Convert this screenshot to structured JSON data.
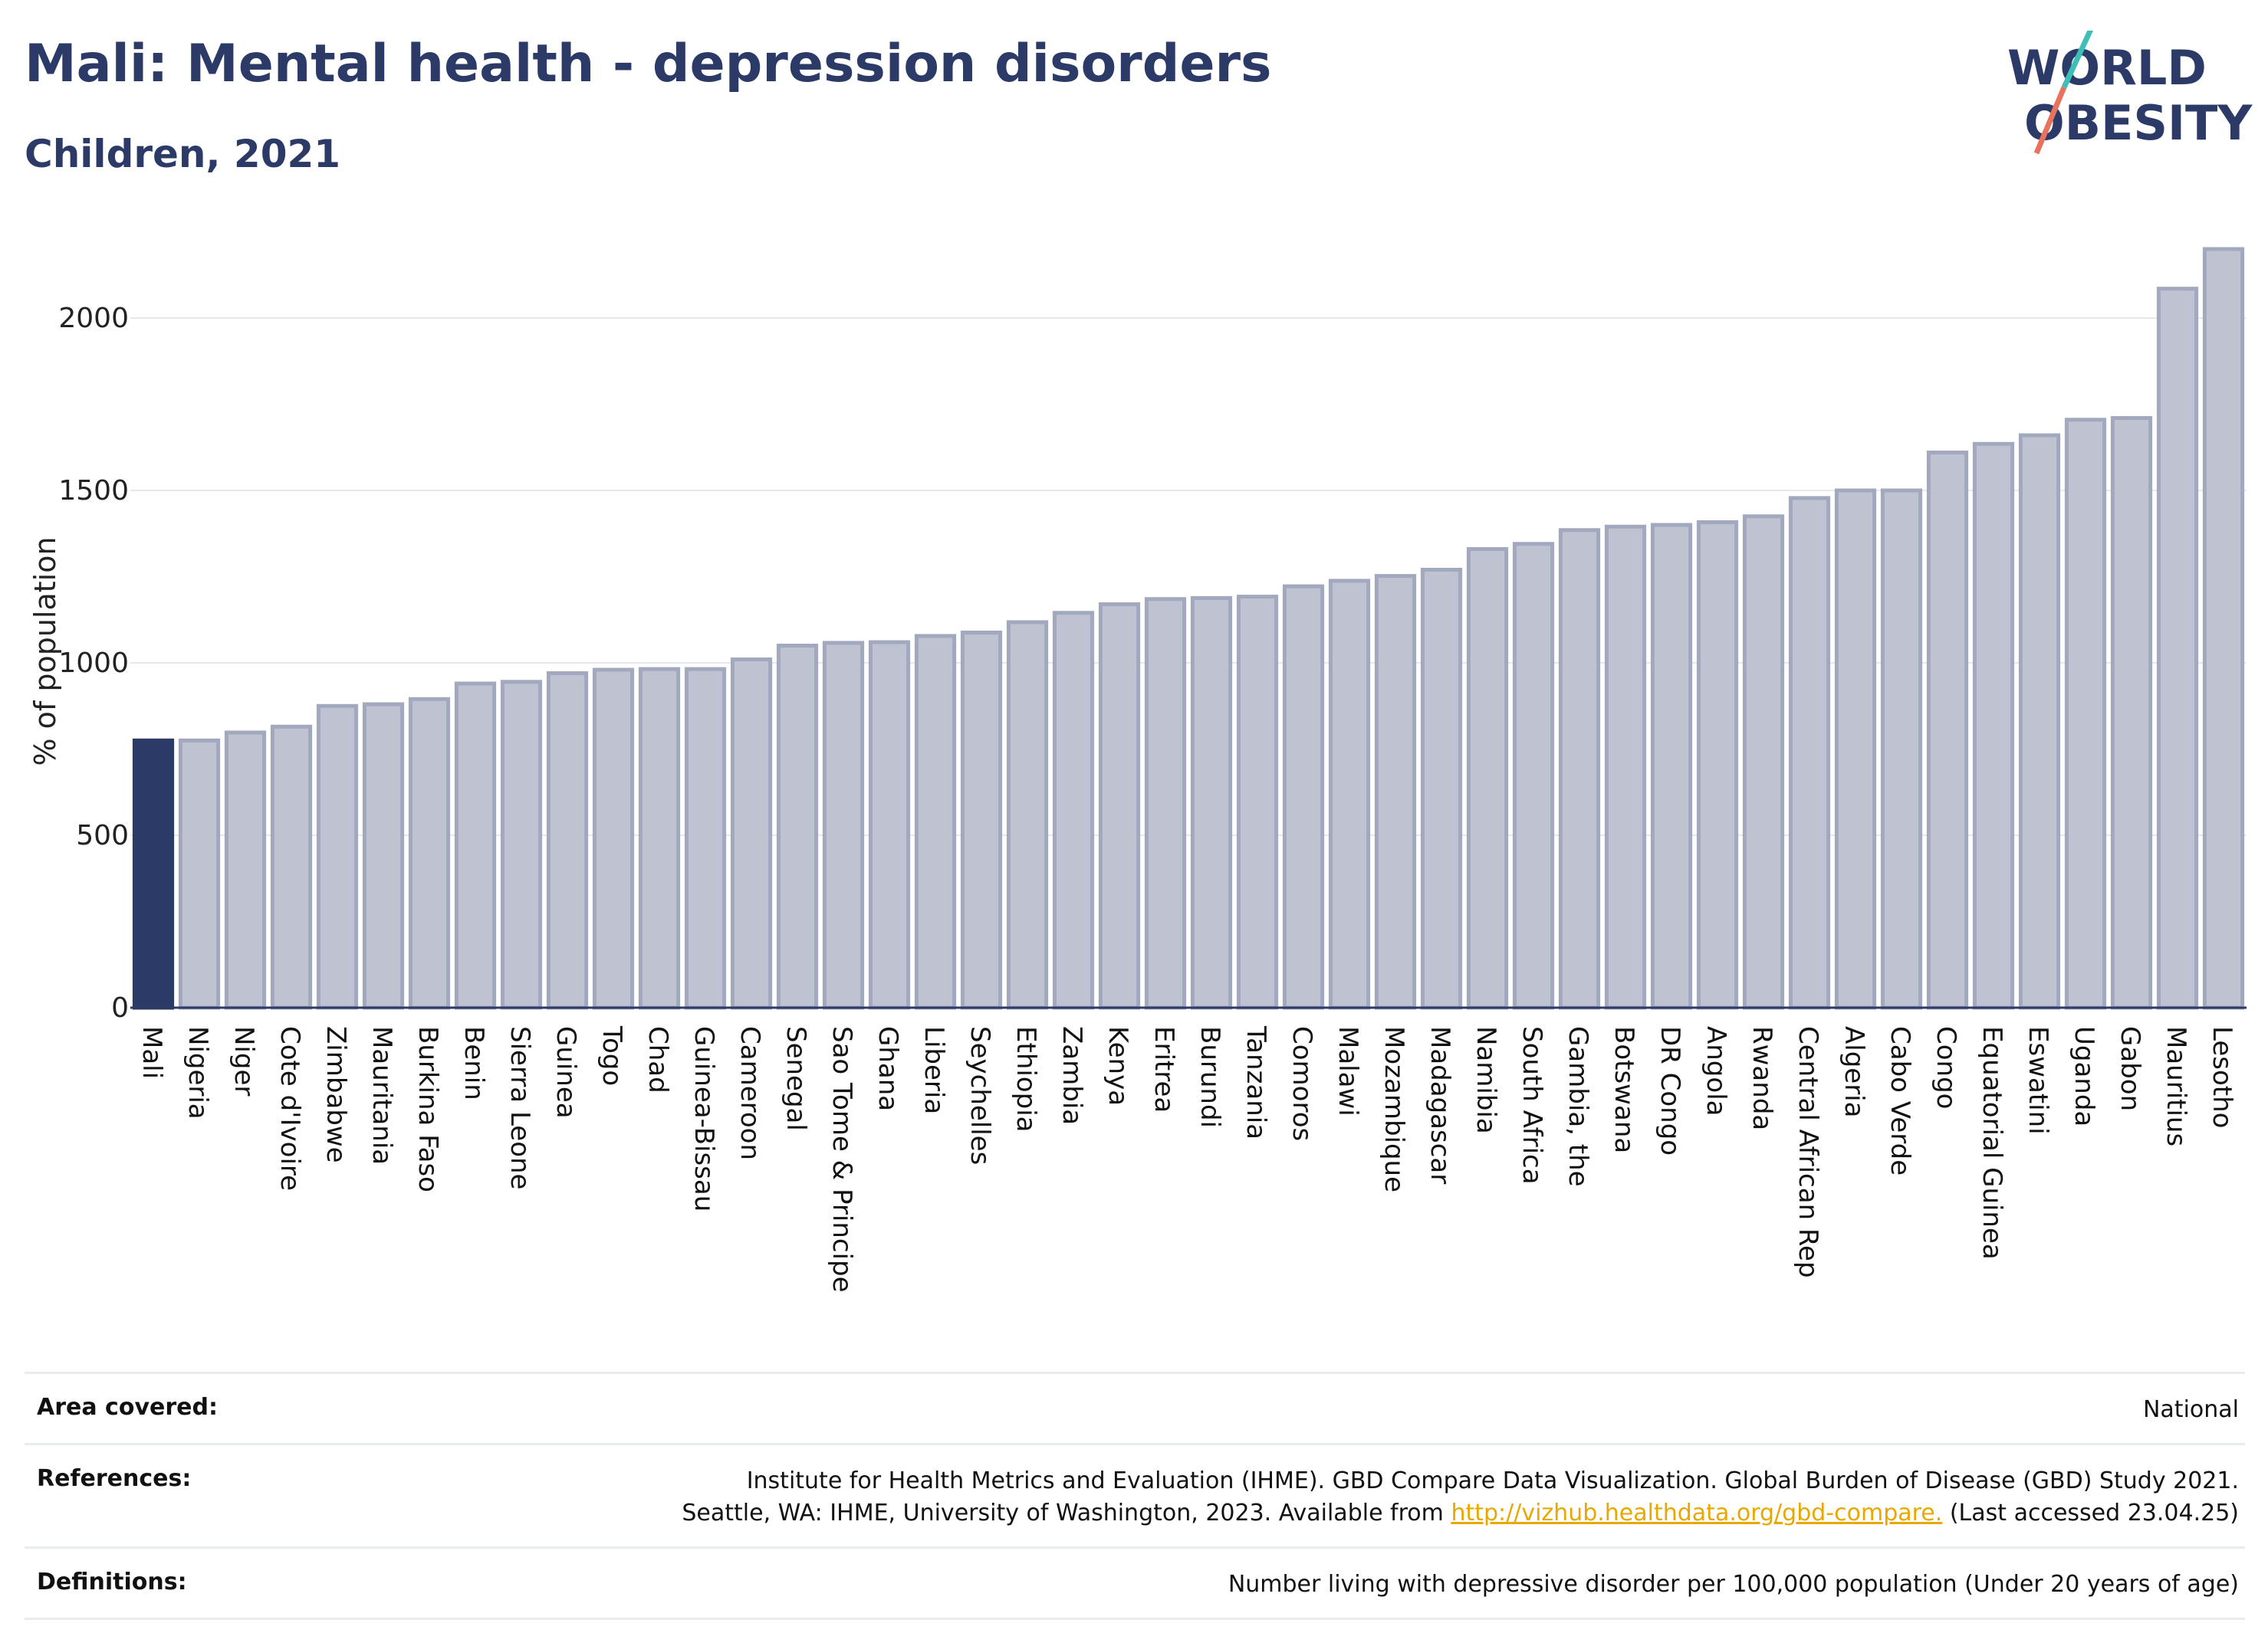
{
  "header": {
    "title": "Mali: Mental health - depression disorders",
    "subtitle": "Children, 2021"
  },
  "logo": {
    "line1": "WORLD",
    "line2": "OBESITY"
  },
  "colors": {
    "highlight_bar": "#2b3a66",
    "other_bars": "#bfc3d1",
    "bar_stroke": "#a2a8bd",
    "gridline": "#e6e8ec",
    "title": "#2b3a66",
    "logo_teal": "#3bbfb6",
    "logo_coral": "#e8725c",
    "link": "#e8a800"
  },
  "chart_data": {
    "type": "bar",
    "title": "Mali: Mental health - depression disorders",
    "subtitle": "Children, 2021",
    "xlabel": "",
    "ylabel": "% of population",
    "ylim": [
      0,
      2200
    ],
    "yticks": [
      0,
      500,
      1000,
      1500,
      2000
    ],
    "grid": true,
    "highlight": "Mali",
    "categories": [
      "Mali",
      "Nigeria",
      "Niger",
      "Cote d'Ivoire",
      "Zimbabwe",
      "Mauritania",
      "Burkina Faso",
      "Benin",
      "Sierra Leone",
      "Guinea",
      "Togo",
      "Chad",
      "Guinea-Bissau",
      "Cameroon",
      "Senegal",
      "Sao Tome & Principe",
      "Ghana",
      "Liberia",
      "Seychelles",
      "Ethiopia",
      "Zambia",
      "Kenya",
      "Eritrea",
      "Burundi",
      "Tanzania",
      "Comoros",
      "Malawi",
      "Mozambique",
      "Madagascar",
      "Namibia",
      "South Africa",
      "Gambia, the",
      "Botswana",
      "DR Congo",
      "Angola",
      "Rwanda",
      "Central African Rep",
      "Algeria",
      "Cabo Verde",
      "Congo",
      "Equatorial Guinea",
      "Eswatini",
      "Uganda",
      "Gabon",
      "Mauritius",
      "Lesotho"
    ],
    "values": [
      775,
      775,
      798,
      815,
      875,
      880,
      895,
      940,
      945,
      970,
      980,
      982,
      982,
      1010,
      1050,
      1058,
      1060,
      1078,
      1088,
      1118,
      1145,
      1170,
      1185,
      1188,
      1192,
      1222,
      1238,
      1252,
      1270,
      1330,
      1345,
      1385,
      1395,
      1400,
      1408,
      1425,
      1478,
      1500,
      1500,
      1610,
      1635,
      1660,
      1705,
      1710,
      2085,
      2200
    ]
  },
  "footer": {
    "area_label": "Area covered:",
    "area_value": "National",
    "references_label": "References:",
    "references_line1": "Institute for Health Metrics and Evaluation (IHME). GBD Compare Data Visualization. Global Burden of Disease (GBD) Study 2021.",
    "references_line2_pre": "Seattle, WA: IHME, University of Washington, 2023. Available from",
    "references_link": "http://vizhub.healthdata.org/gbd-compare.",
    "references_line2_post": "(Last accessed 23.04.25)",
    "definitions_label": "Definitions:",
    "definitions_value": "Number living with depressive disorder per 100,000 population (Under 20 years of age)"
  }
}
